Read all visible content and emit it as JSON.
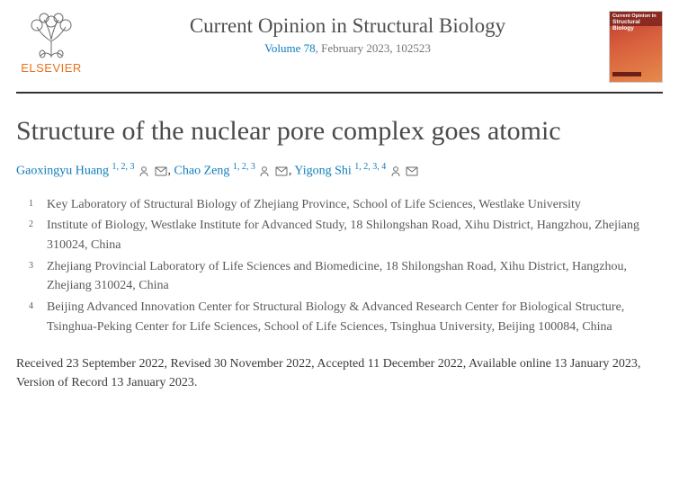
{
  "publisher": {
    "name": "ELSEVIER",
    "logo_color": "#e9711c"
  },
  "journal": {
    "name": "Current Opinion in Structural Biology",
    "volume_link": "Volume 78",
    "issue_date": ", February 2023",
    "article_no": ", 102523",
    "cover_line1": "Current Opinion in",
    "cover_line2": "Structural Biology",
    "cover_bg_from": "#b93a2e",
    "cover_bg_to": "#e68a4a"
  },
  "article": {
    "title": "Structure of the nuclear pore complex goes atomic"
  },
  "authors": [
    {
      "name": "Gaoxingyu Huang",
      "aff": "1, 2, 3",
      "person": true,
      "email": true
    },
    {
      "name": "Chao Zeng",
      "aff": "1, 2, 3",
      "person": true,
      "email": true
    },
    {
      "name": "Yigong Shi",
      "aff": "1, 2, 3, 4",
      "person": true,
      "email": true
    }
  ],
  "affiliations": [
    {
      "num": "1",
      "text": "Key Laboratory of Structural Biology of Zhejiang Province, School of Life Sciences, Westlake University"
    },
    {
      "num": "2",
      "text": "Institute of Biology, Westlake Institute for Advanced Study, 18 Shilongshan Road, Xihu District, Hangzhou, Zhejiang 310024, China"
    },
    {
      "num": "3",
      "text": "Zhejiang Provincial Laboratory of Life Sciences and Biomedicine, 18 Shilongshan Road, Xihu District, Hangzhou, Zhejiang 310024, China"
    },
    {
      "num": "4",
      "text": "Beijing Advanced Innovation Center for Structural Biology & Advanced Research Center for Biological Structure, Tsinghua-Peking Center for Life Sciences, School of Life Sciences, Tsinghua University, Beijing 100084, China"
    }
  ],
  "history": "Received 23 September 2022, Revised 30 November 2022, Accepted 11 December 2022, Available online 13 January 2023, Version of Record 13 January 2023.",
  "colors": {
    "link": "#0c7dbb",
    "rule": "#333333",
    "body_text": "#2e2e2e"
  }
}
